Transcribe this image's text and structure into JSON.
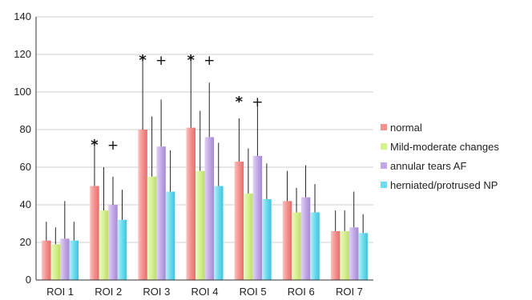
{
  "chart_data": {
    "type": "bar",
    "title": "",
    "xlabel": "",
    "ylabel": "",
    "ylim": [
      0,
      140
    ],
    "yticks": [
      0,
      20,
      40,
      60,
      80,
      100,
      120,
      140
    ],
    "grid": true,
    "legend_position": "right",
    "categories": [
      "ROI 1",
      "ROI 2",
      "ROI 3",
      "ROI 4",
      "ROI 5",
      "ROI 6",
      "ROI 7"
    ],
    "series": [
      {
        "name": "normal",
        "color": "#F4908E",
        "values": [
          21,
          50,
          80,
          81,
          63,
          42,
          26
        ],
        "error": [
          10,
          22,
          37,
          36,
          23,
          16,
          11
        ]
      },
      {
        "name": "Mild-moderate changes",
        "color": "#D6F08F",
        "values": [
          19,
          37,
          55,
          58,
          46,
          36,
          26
        ],
        "error": [
          9,
          23,
          32,
          32,
          24,
          13,
          11
        ]
      },
      {
        "name": "annular tears AF",
        "color": "#C2A9E6",
        "values": [
          22,
          40,
          71,
          76,
          66,
          44,
          28
        ],
        "error": [
          20,
          15,
          25,
          29,
          29,
          17,
          19
        ]
      },
      {
        "name": "herniated/protrused NP",
        "color": "#6FDBEE",
        "values": [
          21,
          32,
          47,
          50,
          43,
          36,
          25
        ],
        "error": [
          10,
          16,
          22,
          23,
          19,
          15,
          10
        ]
      }
    ],
    "annotations": [
      {
        "category": "ROI 2",
        "star": "*",
        "plus": "+"
      },
      {
        "category": "ROI 3",
        "star": "*",
        "plus": "+"
      },
      {
        "category": "ROI 4",
        "star": "*",
        "plus": "+"
      },
      {
        "category": "ROI 5",
        "star": "*",
        "plus": "+"
      }
    ]
  }
}
